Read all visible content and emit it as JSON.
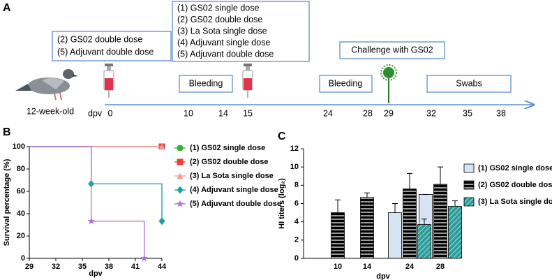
{
  "panels": {
    "a": "A",
    "b": "B",
    "c": "C"
  },
  "timeline": {
    "axis_label": "dpv",
    "ticks": [
      "0",
      "10",
      "14",
      "15",
      "24",
      "28",
      "29",
      "32",
      "35",
      "38"
    ],
    "age": "12-week-old",
    "box_day0": [
      "(2) GS02 double dose",
      "(5) Adjuvant double dose"
    ],
    "box_day15": [
      "(1) GS02 single dose",
      "(2) GS02 double dose",
      "(3) La Sota single dose",
      "(4) Adjuvant single dose",
      "(5) Adjuvant double dose"
    ],
    "challenge": "Challenge with GS02",
    "bleeding_1": "Bleeding",
    "bleeding_2": "Bleeding",
    "swabs": "Swabs"
  },
  "chart_data": [
    {
      "type": "step",
      "x_label": "dpv",
      "y_label": "Survival percentage (%)",
      "xlim": [
        29,
        44
      ],
      "xticks": [
        29,
        32,
        35,
        38,
        41,
        44
      ],
      "ylim": [
        0,
        100
      ],
      "yticks": [
        0,
        20,
        40,
        60,
        80,
        100
      ],
      "series": [
        {
          "name": "(1) GS02 single dose",
          "color": "#2db52d",
          "marker": "circle",
          "x": [
            29,
            44
          ],
          "values": [
            100,
            100
          ]
        },
        {
          "name": "(2) GS02 double dose",
          "color": "#e8403a",
          "marker": "square",
          "x": [
            29,
            44
          ],
          "values": [
            100,
            100
          ]
        },
        {
          "name": "(3) La Sota single dose",
          "color": "#f29a9a",
          "marker": "triangle",
          "x": [
            29,
            44
          ],
          "values": [
            100,
            100
          ]
        },
        {
          "name": "(4) Adjuvant single dose",
          "color": "#1a9e9a",
          "marker": "diamond",
          "x": [
            29,
            36,
            44
          ],
          "values": [
            100,
            66.7,
            33.3
          ]
        },
        {
          "name": "(5) Adjuvant double dose",
          "color": "#b36ae0",
          "marker": "star",
          "x": [
            29,
            36,
            42
          ],
          "values": [
            100,
            33.3,
            0
          ]
        }
      ]
    },
    {
      "type": "bar",
      "x_label": "dpv",
      "y_label": "HI titers (log₂)",
      "categories": [
        "10",
        "14",
        "24",
        "28"
      ],
      "ylim": [
        0,
        12
      ],
      "yticks": [
        0,
        2,
        4,
        6,
        8,
        10,
        12
      ],
      "series": [
        {
          "name": "(1) GS02 single dose",
          "color": "#d6e4f5",
          "pattern": "none",
          "values": [
            null,
            null,
            5,
            7
          ],
          "errors": [
            null,
            null,
            1,
            0
          ]
        },
        {
          "name": "(2) GS02 double dose",
          "color": "#4d8fe0",
          "pattern": "horizontal",
          "values": [
            5,
            6.67,
            7.6,
            8.1
          ],
          "errors": [
            1.4,
            0.5,
            1.7,
            1.9
          ]
        },
        {
          "name": "(3) La Sota single dose",
          "color": "#2a9d9a",
          "pattern": "diagonal",
          "values": [
            null,
            null,
            3.7,
            5.7
          ],
          "errors": [
            null,
            null,
            0.6,
            0.6
          ]
        }
      ]
    }
  ]
}
